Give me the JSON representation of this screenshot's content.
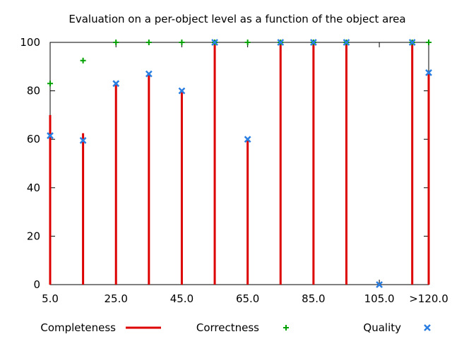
{
  "chart_data": {
    "type": "scatter",
    "title": "Evaluation on a per-object level as a function of the object area",
    "xlabel": "",
    "ylabel": "",
    "x": [
      5,
      15,
      25,
      35,
      45,
      55,
      65,
      75,
      85,
      95,
      105,
      115,
      120
    ],
    "xlim": [
      5,
      120
    ],
    "ylim": [
      0,
      100
    ],
    "y_ticks": [
      "0",
      "20",
      "40",
      "60",
      "80",
      "100"
    ],
    "x_ticks": [
      {
        "x": 5,
        "label": "5.0"
      },
      {
        "x": 25,
        "label": "25.0"
      },
      {
        "x": 45,
        "label": "45.0"
      },
      {
        "x": 65,
        "label": "65.0"
      },
      {
        "x": 85,
        "label": "85.0"
      },
      {
        "x": 105,
        "label": "105.0"
      },
      {
        "x": 120,
        "label": ">120.0"
      }
    ],
    "grid": false,
    "legend_position": "bottom",
    "series": [
      {
        "name": "Completeness",
        "style": "impulses",
        "color": "#dd0000",
        "values": [
          70,
          62.5,
          83,
          87,
          80,
          100,
          60,
          100,
          100,
          100,
          0,
          100,
          87.5
        ]
      },
      {
        "name": "Correctness",
        "style": "plus",
        "color": "#00a000",
        "values": [
          83,
          92.5,
          100,
          100,
          100,
          100,
          100,
          100,
          100,
          100,
          null,
          100,
          100
        ]
      },
      {
        "name": "Quality",
        "style": "cross",
        "color": "#2a7de1",
        "values": [
          61.5,
          59.5,
          83,
          87,
          80,
          100,
          60,
          100,
          100,
          100,
          0,
          100,
          87.5
        ]
      }
    ]
  }
}
